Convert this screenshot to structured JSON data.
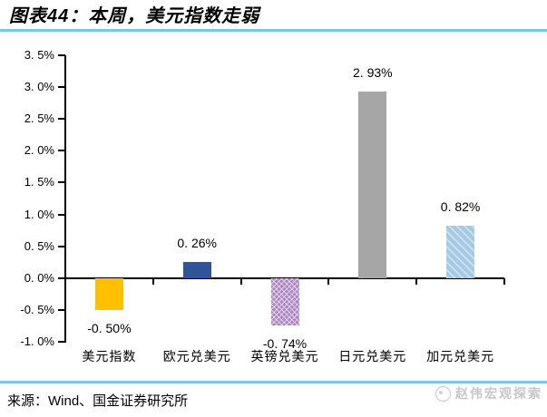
{
  "header": {
    "title": "图表44：本周，美元指数走弱"
  },
  "chart_data": {
    "type": "bar",
    "title": "本周，美元指数走弱",
    "figure_label": "图表44",
    "categories": [
      "美元指数",
      "欧元兑美元",
      "英镑兑美元",
      "日元兑美元",
      "加元兑美元"
    ],
    "values": [
      -0.5,
      0.26,
      -0.74,
      2.93,
      0.82
    ],
    "value_labels": [
      "-0. 50%",
      "0. 26%",
      "-0. 74%",
      "2. 93%",
      "0. 82%"
    ],
    "bar_colors": [
      "#ffc000",
      "#2f5597",
      "#ac87c2",
      "#a6a6a6",
      "#a5c9e2"
    ],
    "bar_patterns": [
      "none",
      "none",
      "diamond",
      "none",
      "diagonal"
    ],
    "xlabel": "",
    "ylabel": "",
    "ylim": [
      -1.0,
      3.5
    ],
    "yticks": [
      3.5,
      3.0,
      2.5,
      2.0,
      1.5,
      1.0,
      0.5,
      0.0,
      -0.5,
      -1.0
    ],
    "ytick_labels": [
      "3. 5%",
      "3. 0%",
      "2. 5%",
      "2. 0%",
      "1. 5%",
      "1. 0%",
      "0. 5%",
      "0. 0%",
      "-0. 5%",
      "-1. 0%"
    ],
    "grid": false,
    "legend_position": "none"
  },
  "footer": {
    "source": "来源：Wind、国金证券研究所",
    "watermark": "赵伟宏观探索"
  },
  "colors": {
    "accent_line": "#74caea",
    "axis_color": "#000000",
    "watermark_color": "#c9c9c9"
  }
}
